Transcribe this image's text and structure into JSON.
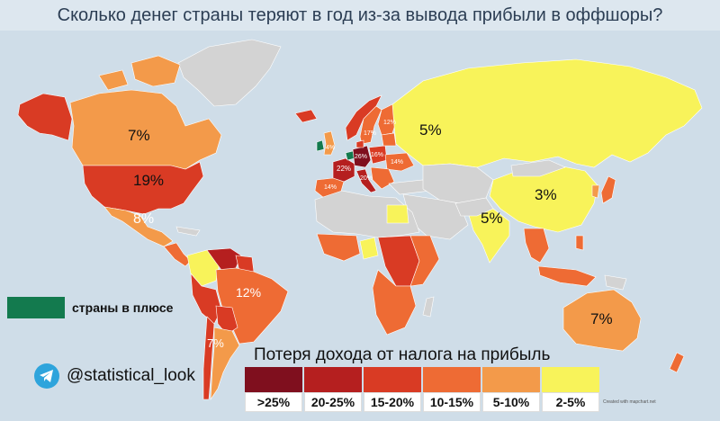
{
  "title": "Сколько денег страны теряют в год из-за вывода прибыли в оффшоры?",
  "colors": {
    "ocean": "#cfdde8",
    "nodata": "#d3d3d3",
    "gt25": "#7f0f1e",
    "r20_25": "#b51f1f",
    "r15_20": "#d93b24",
    "r10_15": "#ee6b34",
    "r5_10": "#f39a4a",
    "r2_5": "#f8f35a",
    "plus": "#137a4e"
  },
  "map_labels": {
    "canada": "7%",
    "usa": "19%",
    "mexico": "8%",
    "brazil": "12%",
    "argentina": "7%",
    "russia": "5%",
    "china": "3%",
    "india": "5%",
    "australia": "7%",
    "uk": "4%",
    "france": "22%",
    "germany": "26%",
    "italy": "20%",
    "spain": "14%",
    "sweden": "17%",
    "finland": "12%",
    "poland": "16%",
    "ukraine": "14%"
  },
  "legend": {
    "title": "Потеря дохода от налога на прибыль",
    "items": [
      {
        "label": ">25%",
        "color": "#7f0f1e"
      },
      {
        "label": "20-25%",
        "color": "#b51f1f"
      },
      {
        "label": "15-20%",
        "color": "#d93b24"
      },
      {
        "label": "10-15%",
        "color": "#ee6b34"
      },
      {
        "label": "5-10%",
        "color": "#f39a4a"
      },
      {
        "label": "2-5%",
        "color": "#f8f35a"
      }
    ]
  },
  "plus_legend": {
    "label": "страны в плюсе",
    "color": "#137a4e"
  },
  "telegram": {
    "handle": "@statistical_look",
    "icon": "telegram-icon"
  },
  "credit": "Created with mapchart.net"
}
